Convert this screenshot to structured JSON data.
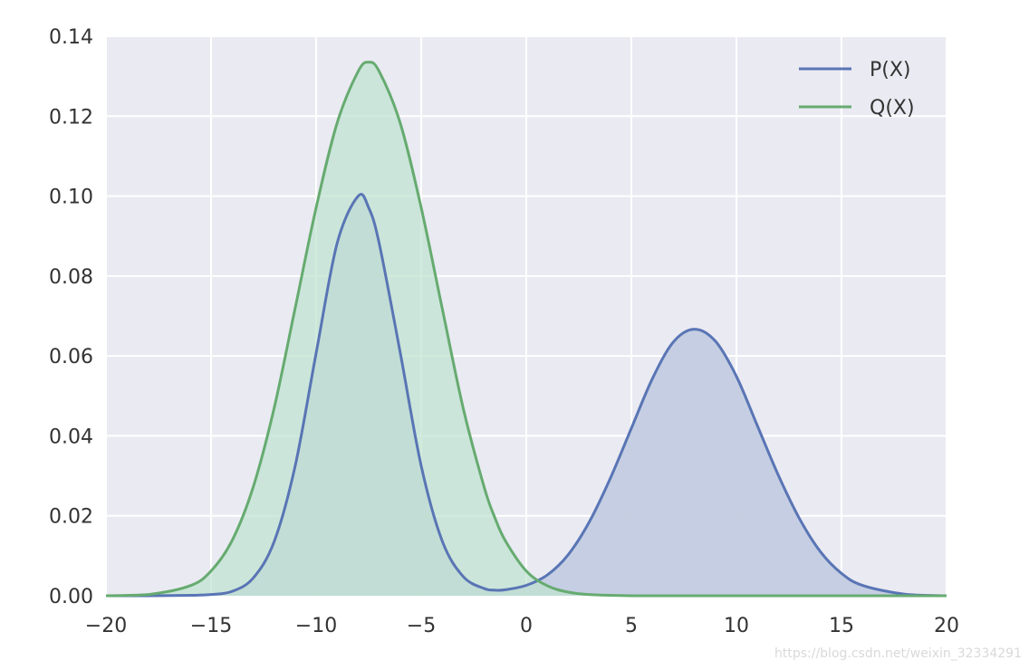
{
  "chart_data": {
    "type": "area",
    "xlim": [
      -20,
      20
    ],
    "ylim": [
      0,
      0.14
    ],
    "xticks": [
      -20,
      -15,
      -10,
      -5,
      0,
      5,
      10,
      15,
      20
    ],
    "xtick_labels": [
      "−20",
      "−15",
      "−10",
      "−5",
      "0",
      "5",
      "10",
      "15",
      "20"
    ],
    "yticks": [
      0.0,
      0.02,
      0.04,
      0.06,
      0.08,
      0.1,
      0.12,
      0.14
    ],
    "ytick_labels": [
      "0.00",
      "0.02",
      "0.04",
      "0.06",
      "0.08",
      "0.10",
      "0.12",
      "0.14"
    ],
    "grid": true,
    "background": "#eaeaf2",
    "legend_position": "top-right",
    "x": [
      -20,
      -18,
      -16,
      -15,
      -14,
      -13,
      -12,
      -11,
      -10,
      -9,
      -8,
      -7.5,
      -7,
      -6,
      -5,
      -4,
      -3,
      -2,
      -1.5,
      -1,
      0,
      1,
      2,
      3,
      4,
      5,
      6,
      7,
      8,
      9,
      10,
      11,
      12,
      13,
      14,
      15,
      16,
      18,
      20
    ],
    "series": [
      {
        "name": "P(X)",
        "color": "#5975b5",
        "fill": "#c3cce0",
        "values": [
          0.0,
          0.0,
          0.0001,
          0.0003,
          0.0011,
          0.0044,
          0.0135,
          0.0324,
          0.0607,
          0.0882,
          0.1,
          0.0971,
          0.0882,
          0.0609,
          0.0325,
          0.0137,
          0.0048,
          0.0018,
          0.0014,
          0.0015,
          0.0026,
          0.0052,
          0.0103,
          0.0185,
          0.0294,
          0.0419,
          0.0543,
          0.0635,
          0.0667,
          0.0637,
          0.0549,
          0.0425,
          0.0301,
          0.0193,
          0.011,
          0.0056,
          0.0026,
          0.0004,
          0.0
        ]
      },
      {
        "name": "Q(X)",
        "color": "#66ab70",
        "fill": "#bfe3d0",
        "values": [
          0.0,
          0.0003,
          0.0025,
          0.0062,
          0.0138,
          0.0271,
          0.0469,
          0.0719,
          0.0971,
          0.1183,
          0.1312,
          0.1335,
          0.1312,
          0.1183,
          0.0971,
          0.0719,
          0.0469,
          0.0271,
          0.0196,
          0.0138,
          0.0062,
          0.0025,
          0.0009,
          0.0003,
          0.0001,
          0.0,
          0.0,
          0.0,
          0.0,
          0.0,
          0.0,
          0.0,
          0.0,
          0.0,
          0.0,
          0.0,
          0.0,
          0.0,
          0.0
        ]
      }
    ]
  },
  "watermark": "https://blog.csdn.net/weixin_32334291"
}
